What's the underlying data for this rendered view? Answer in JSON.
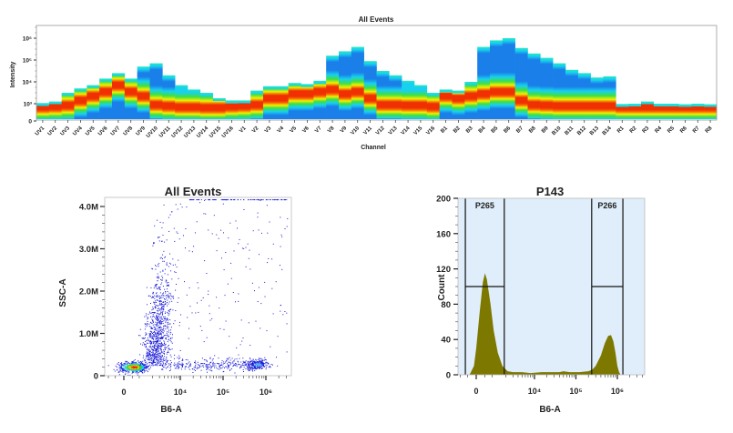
{
  "chart_data": [
    {
      "type": "heatmap",
      "title": "All Events",
      "xlabel": "Channel",
      "ylabel": "Intensity",
      "yscale": "log",
      "yticks": [
        "0",
        "10³",
        "10⁴",
        "10⁵",
        "10⁶"
      ],
      "colormap": [
        "#1a7fe8",
        "#18d0f0",
        "#40e040",
        "#f0f000",
        "#f03000"
      ],
      "categories": [
        "UV1",
        "UV2",
        "UV3",
        "UV4",
        "UV5",
        "UV6",
        "UV7",
        "UV8",
        "UV9",
        "UV10",
        "UV11",
        "UV12",
        "UV13",
        "UV14",
        "UV15",
        "UV16",
        "V1",
        "V2",
        "V3",
        "V4",
        "V5",
        "V6",
        "V7",
        "V8",
        "V9",
        "V10",
        "V11",
        "V12",
        "V13",
        "V14",
        "V15",
        "V16",
        "B1",
        "B2",
        "B3",
        "B4",
        "B5",
        "B6",
        "B7",
        "B8",
        "B9",
        "B10",
        "B11",
        "B12",
        "B13",
        "B14",
        "R1",
        "R2",
        "R3",
        "R4",
        "R5",
        "R6",
        "R7",
        "R8"
      ],
      "max_log10": [
        3.03,
        3.1,
        3.5,
        3.7,
        3.85,
        4.15,
        4.4,
        4.15,
        4.7,
        4.85,
        4.3,
        3.85,
        3.65,
        3.5,
        3.25,
        3.15,
        3.15,
        3.6,
        3.8,
        3.8,
        3.95,
        3.9,
        4.05,
        5.2,
        5.4,
        5.6,
        4.95,
        4.5,
        4.3,
        4.05,
        3.85,
        3.5,
        3.65,
        3.6,
        4.0,
        5.6,
        5.9,
        6.0,
        5.55,
        5.3,
        5.1,
        4.85,
        4.55,
        4.4,
        4.2,
        4.25,
        2.95,
        3.0,
        3.1,
        3.0,
        3.0,
        2.9,
        3.0,
        2.9
      ],
      "peak_log10": [
        2.6,
        2.7,
        2.9,
        3.2,
        3.4,
        3.6,
        3.9,
        3.6,
        3.4,
        3.0,
        2.8,
        2.6,
        2.6,
        2.5,
        2.5,
        2.7,
        2.8,
        3.0,
        3.3,
        3.3,
        3.5,
        3.5,
        3.6,
        3.7,
        3.5,
        3.6,
        3.3,
        3.0,
        3.0,
        2.9,
        2.9,
        2.7,
        3.4,
        3.3,
        3.4,
        3.5,
        3.6,
        3.6,
        3.2,
        3.0,
        2.9,
        2.8,
        2.8,
        2.8,
        2.8,
        2.8,
        2.6,
        2.6,
        2.6,
        2.6,
        2.6,
        2.6,
        2.6,
        2.6
      ]
    },
    {
      "type": "scatter",
      "title": "All Events",
      "xlabel": "B6-A",
      "ylabel": "SSC-A",
      "xscale": "biexponential",
      "xticks": [
        "0",
        "10⁴",
        "10⁵",
        "10⁶"
      ],
      "yticks": [
        "0",
        "1.0M",
        "2.0M",
        "3.0M",
        "4.0M"
      ],
      "ylim": [
        0,
        4200000
      ],
      "point_color": "#1a1ad8",
      "populations": [
        {
          "b6_center": 500,
          "ssc_center": 210000,
          "events": 700
        },
        {
          "b6_center": 2500,
          "ssc_center": 1200000,
          "events": 900
        },
        {
          "b6_center": 630000,
          "ssc_center": 270000,
          "events": 250
        },
        {
          "b6_range": [
            3000,
            500000
          ],
          "ssc_center": 250000,
          "events": 300
        },
        {
          "b6_range": [
            2000,
            3000000
          ],
          "ssc_range": [
            300000,
            4200000
          ],
          "events": 200
        }
      ]
    },
    {
      "type": "area",
      "title": "P143",
      "xlabel": "B6-A",
      "ylabel": "Count",
      "xscale": "biexponential",
      "xticks": [
        "0",
        "10⁴",
        "10⁵",
        "10⁶"
      ],
      "yticks": [
        "0",
        "40",
        "80",
        "120",
        "160",
        "200"
      ],
      "ylim": [
        0,
        200
      ],
      "fill_color": "#7d7800",
      "background_color": "#dfeefa",
      "points": [
        [
          -300,
          0
        ],
        [
          -100,
          10
        ],
        [
          0,
          30
        ],
        [
          150,
          70
        ],
        [
          300,
          105
        ],
        [
          400,
          115
        ],
        [
          500,
          108
        ],
        [
          700,
          80
        ],
        [
          900,
          50
        ],
        [
          1200,
          25
        ],
        [
          1600,
          10
        ],
        [
          2200,
          4
        ],
        [
          3000,
          3
        ],
        [
          5000,
          3
        ],
        [
          8000,
          2
        ],
        [
          15000,
          3
        ],
        [
          25000,
          3
        ],
        [
          40000,
          3
        ],
        [
          50000,
          4
        ],
        [
          70000,
          3
        ],
        [
          120000,
          3
        ],
        [
          200000,
          4
        ],
        [
          250000,
          6
        ],
        [
          300000,
          10
        ],
        [
          400000,
          22
        ],
        [
          500000,
          36
        ],
        [
          600000,
          44
        ],
        [
          700000,
          45
        ],
        [
          800000,
          38
        ],
        [
          900000,
          25
        ],
        [
          1000000,
          10
        ],
        [
          1100000,
          3
        ],
        [
          1200000,
          0
        ]
      ],
      "gates": [
        {
          "label": "P265",
          "min": -510,
          "max": 1800,
          "count_level": 100
        },
        {
          "label": "P266",
          "min": 240000,
          "max": 1360000,
          "count_level": 100
        }
      ]
    }
  ]
}
